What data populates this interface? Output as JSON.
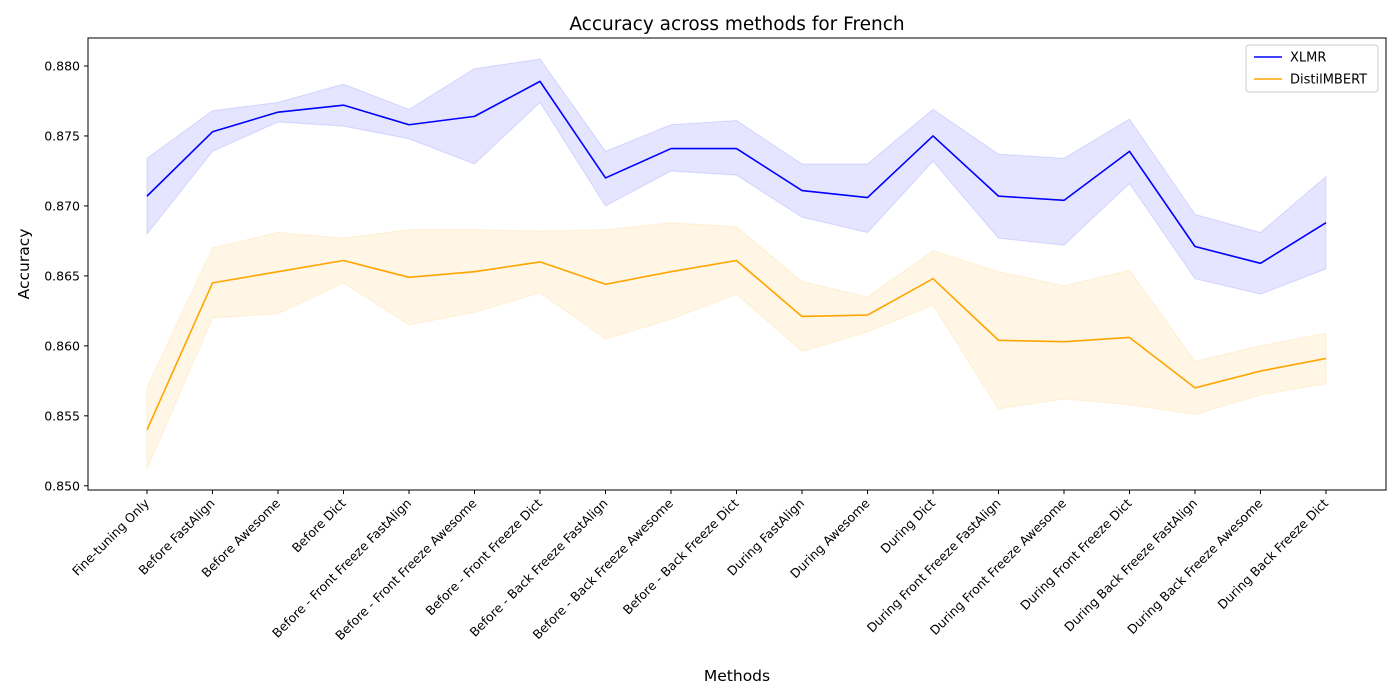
{
  "chart_data": {
    "type": "line",
    "title": "Accuracy across methods for French",
    "xlabel": "Methods",
    "ylabel": "Accuracy",
    "ylim": [
      0.8497,
      0.882
    ],
    "yticks": [
      "0.850",
      "0.855",
      "0.860",
      "0.865",
      "0.870",
      "0.875",
      "0.880"
    ],
    "grid": false,
    "legend_position": "top-right",
    "categories": [
      "Fine-tuning Only",
      "Before FastAlign",
      "Before Awesome",
      "Before Dict",
      "Before - Front Freeze FastAlign",
      "Before - Front Freeze Awesome",
      "Before - Front Freeze Dict",
      "Before - Back Freeze FastAlign",
      "Before - Back Freeze Awesome",
      "Before - Back Freeze Dict",
      "During FastAlign",
      "During Awesome",
      "During Dict",
      "During Front Freeze FastAlign",
      "During Front Freeze Awesome",
      "During Front Freeze Dict",
      "During Back Freeze FastAlign",
      "During Back Freeze Awesome",
      "During Back Freeze Dict"
    ],
    "series": [
      {
        "name": "XLMR",
        "color": "#0000ff",
        "values": [
          0.8707,
          0.8753,
          0.8767,
          0.8772,
          0.8758,
          0.8764,
          0.8789,
          0.872,
          0.8741,
          0.8741,
          0.8711,
          0.8706,
          0.875,
          0.8707,
          0.8704,
          0.8739,
          0.8671,
          0.8659,
          0.8688
        ],
        "lower": [
          0.868,
          0.8739,
          0.876,
          0.8757,
          0.8748,
          0.873,
          0.8774,
          0.87,
          0.8725,
          0.8722,
          0.8692,
          0.8681,
          0.8732,
          0.8677,
          0.8672,
          0.8716,
          0.8648,
          0.8637,
          0.8655
        ],
        "upper": [
          0.8734,
          0.8768,
          0.8774,
          0.8787,
          0.8769,
          0.8798,
          0.8805,
          0.8739,
          0.8758,
          0.8761,
          0.873,
          0.873,
          0.8769,
          0.8737,
          0.8734,
          0.8762,
          0.8694,
          0.8681,
          0.8721
        ]
      },
      {
        "name": "DistilMBERT",
        "color": "#ffa500",
        "values": [
          0.854,
          0.8645,
          0.8653,
          0.8661,
          0.8649,
          0.8653,
          0.866,
          0.8644,
          0.8653,
          0.8661,
          0.8621,
          0.8622,
          0.8648,
          0.8604,
          0.8603,
          0.8606,
          0.857,
          0.8582,
          0.8591
        ],
        "lower": [
          0.8512,
          0.862,
          0.8623,
          0.8645,
          0.8615,
          0.8624,
          0.8638,
          0.8605,
          0.8619,
          0.8637,
          0.8596,
          0.861,
          0.8629,
          0.8555,
          0.8562,
          0.8558,
          0.8551,
          0.8565,
          0.8573
        ],
        "upper": [
          0.857,
          0.867,
          0.8681,
          0.8677,
          0.8683,
          0.8683,
          0.8682,
          0.8683,
          0.8688,
          0.8685,
          0.8646,
          0.8635,
          0.8668,
          0.8653,
          0.8643,
          0.8654,
          0.8589,
          0.86,
          0.8609
        ]
      }
    ]
  }
}
